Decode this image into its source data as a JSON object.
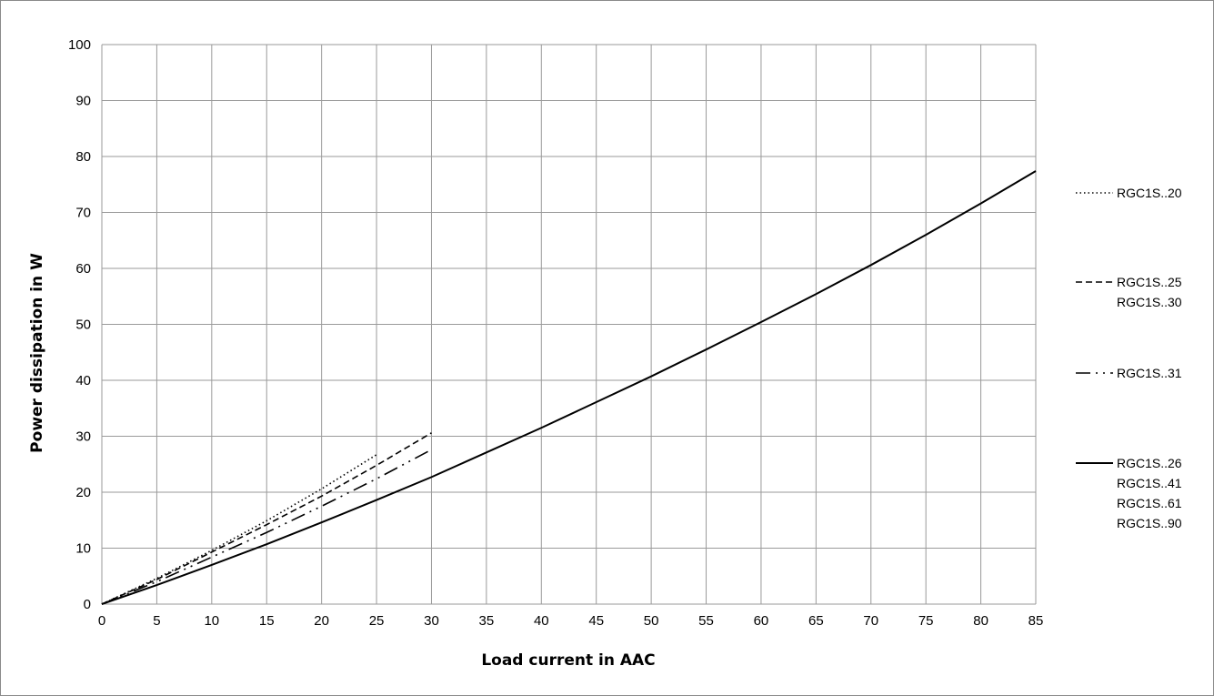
{
  "chart_data": {
    "type": "line",
    "title": "",
    "xlabel": "Load current in AAC",
    "ylabel": "Power dissipation in W",
    "xlim": [
      0,
      85
    ],
    "ylim": [
      0,
      100
    ],
    "xticks": [
      0,
      5,
      10,
      15,
      20,
      25,
      30,
      35,
      40,
      45,
      50,
      55,
      60,
      65,
      70,
      75,
      80,
      85
    ],
    "yticks": [
      0,
      10,
      20,
      30,
      40,
      50,
      60,
      70,
      80,
      90,
      100
    ],
    "grid": true,
    "legend_position": "right",
    "series": [
      {
        "name": "RGC1S..20",
        "labels": [
          "RGC1S..20"
        ],
        "style": "dotted",
        "x": [
          0,
          5,
          10,
          15,
          20,
          25
        ],
        "y": [
          0,
          4.6,
          9.6,
          14.9,
          20.6,
          26.7
        ]
      },
      {
        "name": "RGC1S..25 RGC1S..30",
        "labels": [
          "RGC1S..25",
          "RGC1S..30"
        ],
        "style": "dashed",
        "x": [
          0,
          5,
          10,
          15,
          20,
          25,
          30
        ],
        "y": [
          0,
          4.4,
          9.3,
          14.2,
          19.3,
          24.8,
          30.6
        ]
      },
      {
        "name": "RGC1S..31",
        "labels": [
          "RGC1S..31"
        ],
        "style": "dash-dot-dot",
        "x": [
          0,
          5,
          10,
          15,
          20,
          25,
          30
        ],
        "y": [
          0,
          4.0,
          8.4,
          12.8,
          17.5,
          22.4,
          27.6
        ]
      },
      {
        "name": "RGC1S..26 RGC1S..41 RGC1S..61 RGC1S..90",
        "labels": [
          "RGC1S..26",
          "RGC1S..41",
          "RGC1S..61",
          "RGC1S..90"
        ],
        "style": "solid",
        "x": [
          0,
          5,
          10,
          15,
          20,
          25,
          30,
          35,
          40,
          45,
          50,
          55,
          60,
          65,
          70,
          75,
          80,
          85
        ],
        "y": [
          0,
          3.4,
          7.0,
          10.7,
          14.6,
          18.6,
          22.7,
          27.1,
          31.5,
          36.1,
          40.7,
          45.5,
          50.4,
          55.4,
          60.6,
          66.0,
          71.6,
          77.4
        ]
      }
    ]
  }
}
